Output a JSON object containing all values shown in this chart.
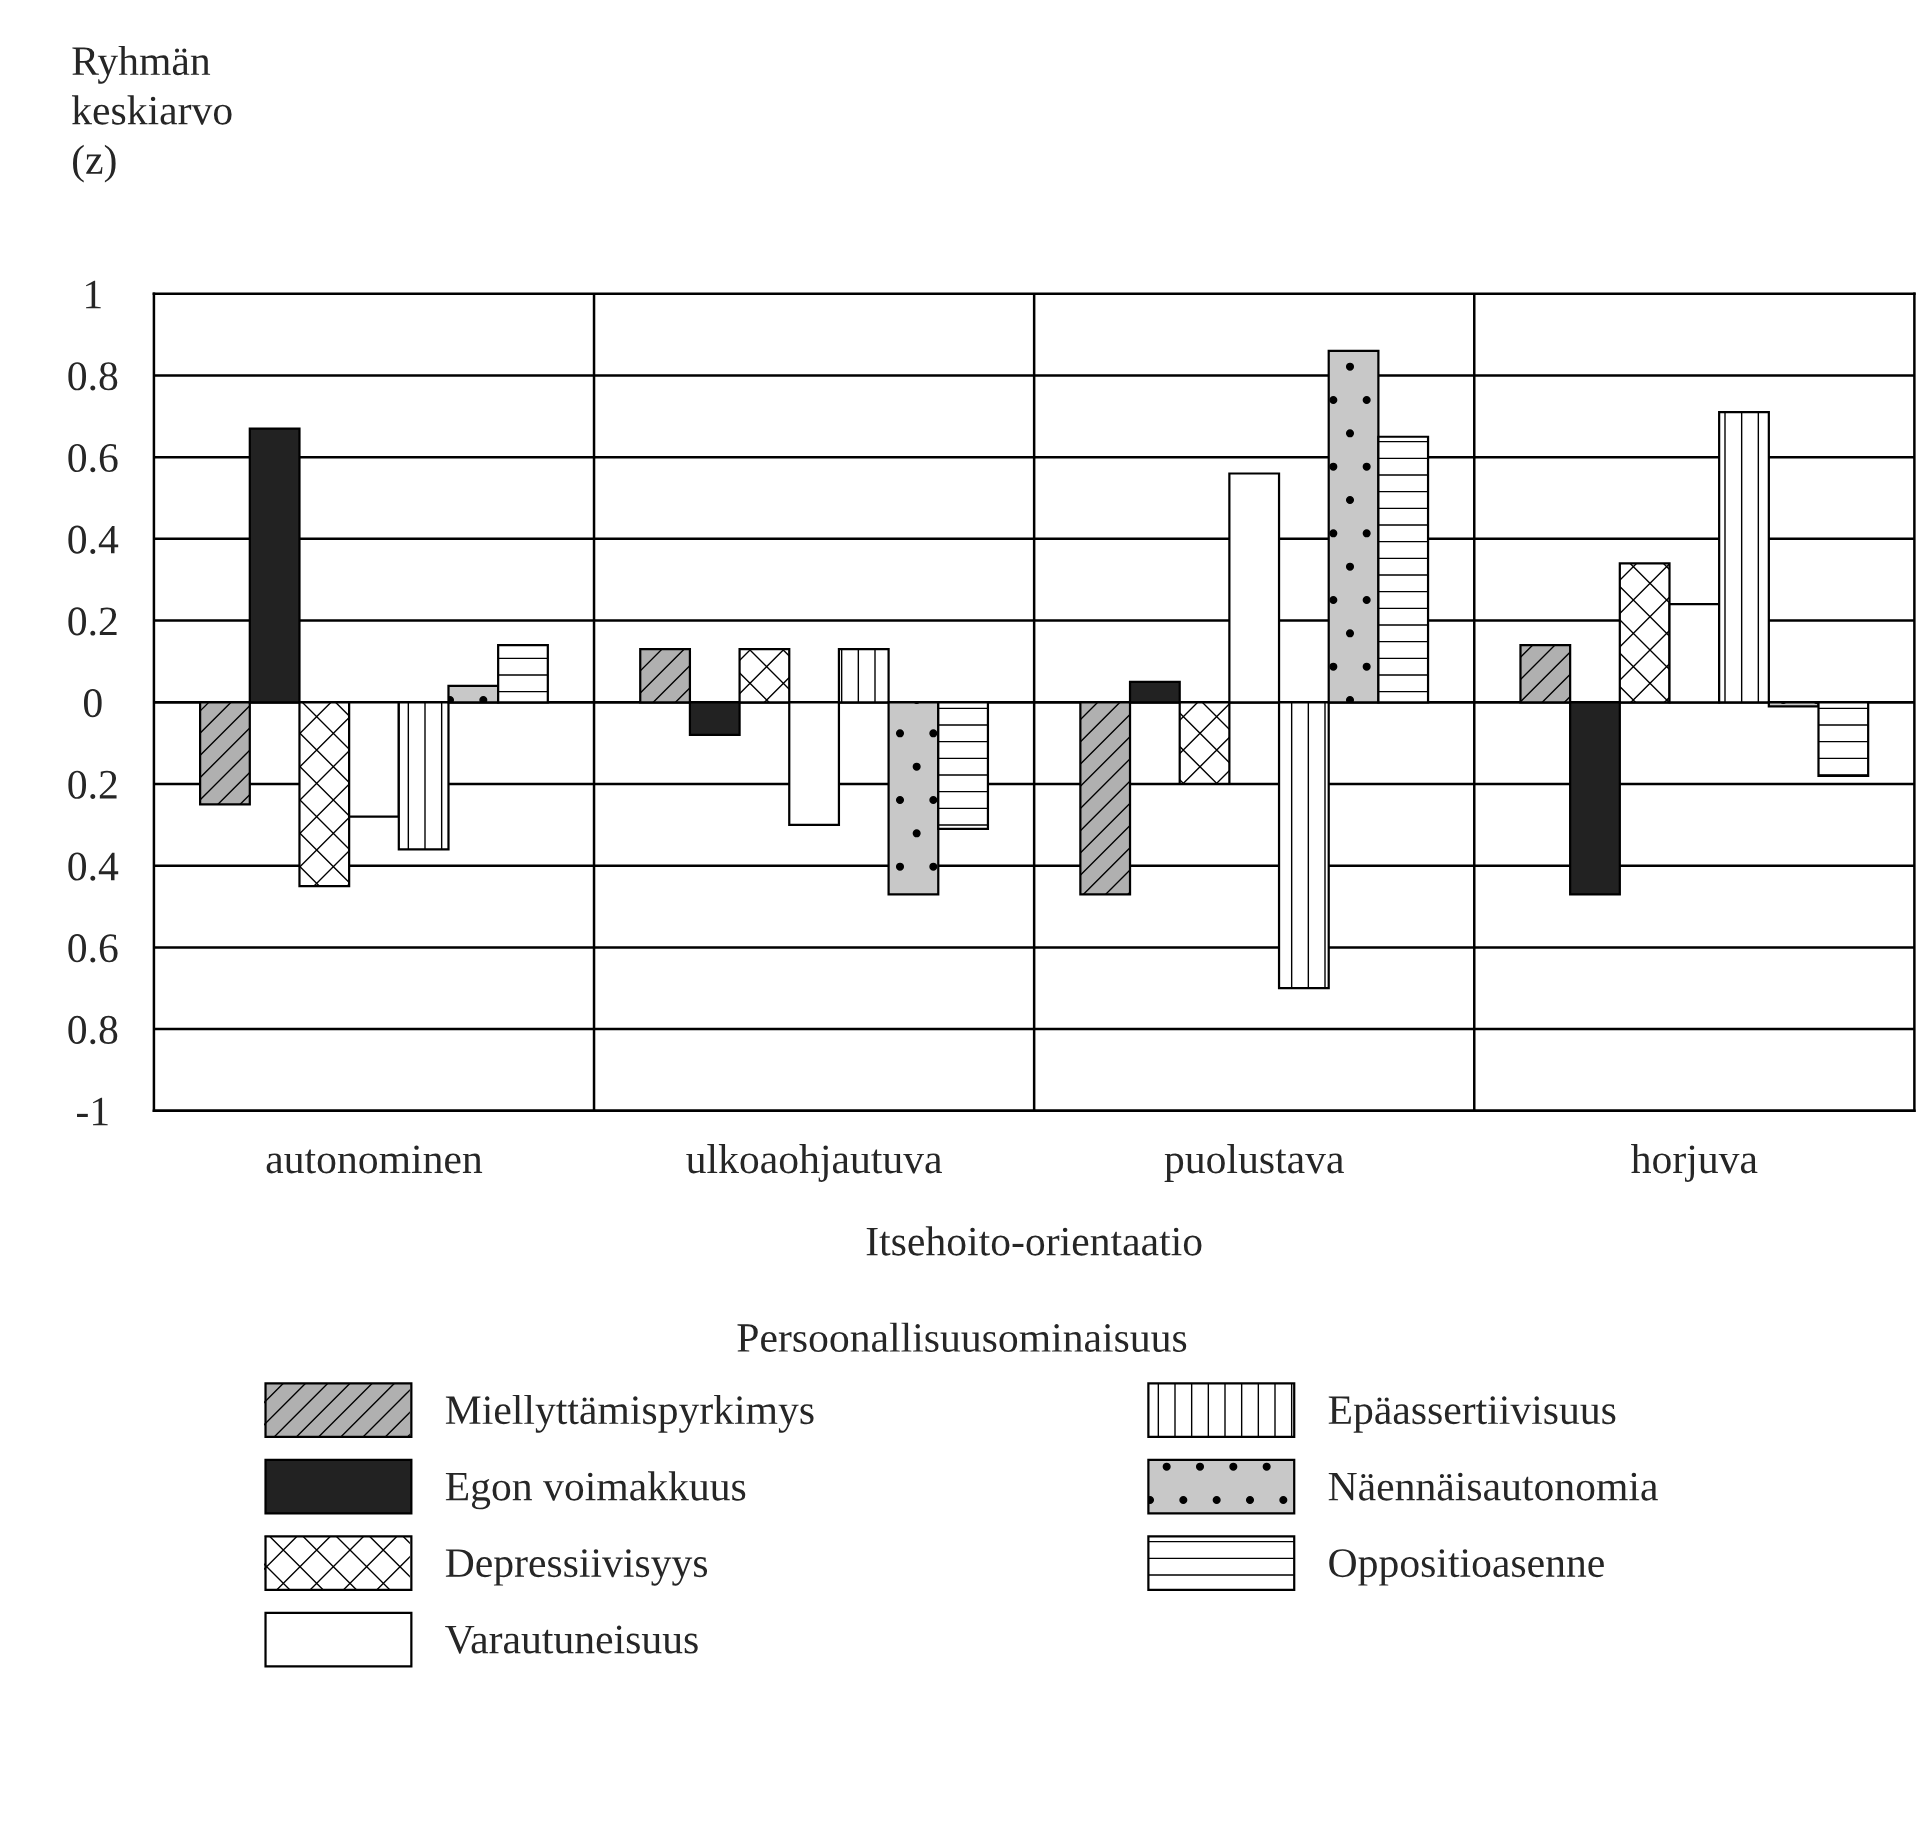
{
  "chart_data": {
    "type": "bar",
    "ylabel": "Ryhmän keskiarvo (z)",
    "xlabel": "Itsehoito-orientaatio",
    "legend_title": "Persoonallisuusominaisuus",
    "categories": [
      "autonominen",
      "ulkoaohjautuva",
      "puolustava",
      "horjuva"
    ],
    "series": [
      {
        "name": "Miellyttämispyrkimys",
        "color": "#b0b0b0",
        "values": [
          -0.25,
          0.13,
          -0.47,
          0.14
        ]
      },
      {
        "name": "Egon voimakkuus",
        "color": "#222222",
        "values": [
          0.67,
          -0.08,
          0.05,
          -0.47
        ]
      },
      {
        "name": "Depressiivisyys",
        "color": "#ffffff",
        "values": [
          -0.45,
          0.13,
          -0.2,
          0.34
        ]
      },
      {
        "name": "Varautuneisuus",
        "color": "#ffffff",
        "values": [
          -0.28,
          -0.3,
          0.56,
          0.24
        ]
      },
      {
        "name": "Epäassertiivisuus",
        "color": "#ffffff",
        "values": [
          -0.36,
          0.13,
          -0.7,
          0.71
        ]
      },
      {
        "name": "Näennäisautonomia",
        "color": "#c8c8c8",
        "values": [
          0.04,
          -0.47,
          0.86,
          -0.01
        ]
      },
      {
        "name": "Oppositioasenne",
        "color": "#ffffff",
        "values": [
          0.14,
          -0.31,
          0.65,
          -0.18
        ]
      }
    ],
    "ylim": [
      -1,
      1
    ],
    "yticks": [
      1,
      {
        "value": 0.8,
        "label": "0.8"
      },
      {
        "value": 0.6,
        "label": "0.6"
      },
      {
        "value": 0.4,
        "label": "0.4"
      },
      {
        "value": 0.2,
        "label": "0.2"
      },
      0,
      {
        "value": -0.2,
        "label": "0.2"
      },
      {
        "value": -0.4,
        "label": "0.4"
      },
      {
        "value": -0.6,
        "label": "0.6"
      },
      {
        "value": -0.8,
        "label": "0.8"
      },
      -1
    ],
    "grid": "y",
    "legend": "bottom"
  }
}
